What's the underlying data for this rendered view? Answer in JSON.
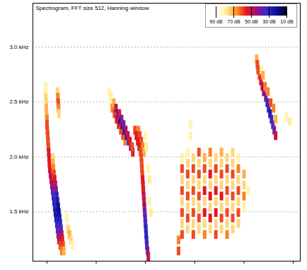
{
  "chart_data": {
    "type": "heatmap",
    "title": "Spectrogram, FFT size 512, Hanning window",
    "xlim": [
      0,
      38
    ],
    "xticks": [
      2,
      9,
      16,
      23,
      30,
      37
    ],
    "ylim": [
      1.05,
      3.4
    ],
    "yticks": [
      {
        "value": 1.5,
        "label": "1.5 kHz"
      },
      {
        "value": 2.0,
        "label": "2.0 kHz"
      },
      {
        "value": 2.5,
        "label": "2.5 kHz"
      },
      {
        "value": 3.0,
        "label": "3.0 kHz"
      }
    ],
    "grid": true,
    "tick_labels": "y",
    "legend": "top-right",
    "color_bar": {
      "range": [
        90,
        10
      ],
      "ticks": [
        {
          "value": 90,
          "label": "90 dB"
        },
        {
          "value": 70,
          "label": "70 dB"
        },
        {
          "value": 50,
          "label": "50 dB"
        },
        {
          "value": 30,
          "label": "30 dB"
        },
        {
          "value": 10,
          "label": "10 dB"
        }
      ]
    },
    "cell_width": 0.5,
    "cell_height": 0.08,
    "cells": [
      [
        1.6,
        2.6,
        80
      ],
      [
        1.6,
        2.55,
        80
      ],
      [
        1.65,
        2.5,
        75
      ],
      [
        1.7,
        2.45,
        75
      ],
      [
        1.7,
        2.4,
        70
      ],
      [
        1.75,
        2.35,
        70
      ],
      [
        1.8,
        2.3,
        65
      ],
      [
        1.8,
        2.25,
        60
      ],
      [
        1.85,
        2.2,
        60
      ],
      [
        1.9,
        2.15,
        60
      ],
      [
        1.95,
        2.1,
        60
      ],
      [
        2.0,
        2.05,
        60
      ],
      [
        2.05,
        2.0,
        55
      ],
      [
        2.1,
        1.95,
        55
      ],
      [
        2.15,
        1.9,
        55
      ],
      [
        2.2,
        1.85,
        55
      ],
      [
        2.3,
        1.8,
        50
      ],
      [
        2.4,
        1.75,
        50
      ],
      [
        2.5,
        1.7,
        45
      ],
      [
        2.6,
        1.65,
        40
      ],
      [
        2.7,
        1.6,
        35
      ],
      [
        2.8,
        1.55,
        30
      ],
      [
        2.9,
        1.5,
        30
      ],
      [
        3.0,
        1.45,
        25
      ],
      [
        3.1,
        1.4,
        25
      ],
      [
        3.2,
        1.35,
        30
      ],
      [
        3.3,
        1.3,
        35
      ],
      [
        3.4,
        1.25,
        40
      ],
      [
        3.5,
        1.2,
        50
      ],
      [
        3.7,
        1.15,
        60
      ],
      [
        3.9,
        1.1,
        65
      ],
      [
        2.6,
        1.95,
        75
      ],
      [
        2.65,
        1.9,
        70
      ],
      [
        2.7,
        1.85,
        65
      ],
      [
        2.8,
        1.8,
        60
      ],
      [
        2.9,
        1.75,
        55
      ],
      [
        3.0,
        1.7,
        50
      ],
      [
        3.1,
        1.65,
        40
      ],
      [
        3.2,
        1.6,
        30
      ],
      [
        3.3,
        1.55,
        25
      ],
      [
        3.4,
        1.5,
        20
      ],
      [
        3.5,
        1.45,
        20
      ],
      [
        3.6,
        1.4,
        25
      ],
      [
        3.7,
        1.35,
        30
      ],
      [
        3.8,
        1.3,
        35
      ],
      [
        3.9,
        1.25,
        45
      ],
      [
        4.0,
        1.2,
        55
      ],
      [
        4.1,
        1.15,
        60
      ],
      [
        4.2,
        1.1,
        70
      ],
      [
        3.3,
        2.55,
        75
      ],
      [
        3.35,
        2.5,
        65
      ],
      [
        3.4,
        2.45,
        60
      ],
      [
        3.45,
        2.4,
        65
      ],
      [
        3.5,
        2.35,
        75
      ],
      [
        4.6,
        1.4,
        80
      ],
      [
        4.8,
        1.3,
        75
      ],
      [
        5.0,
        1.25,
        70
      ],
      [
        5.2,
        1.2,
        75
      ],
      [
        5.4,
        1.15,
        80
      ],
      [
        10.7,
        2.55,
        80
      ],
      [
        10.9,
        2.5,
        78
      ],
      [
        10.8,
        2.45,
        80
      ],
      [
        11.1,
        2.4,
        65
      ],
      [
        11.4,
        2.35,
        60
      ],
      [
        11.7,
        2.3,
        55
      ],
      [
        12.0,
        2.25,
        55
      ],
      [
        12.3,
        2.2,
        60
      ],
      [
        12.6,
        2.15,
        60
      ],
      [
        12.9,
        2.1,
        65
      ],
      [
        11.3,
        2.45,
        70
      ],
      [
        11.6,
        2.4,
        50
      ],
      [
        11.9,
        2.35,
        30
      ],
      [
        12.2,
        2.3,
        20
      ],
      [
        12.5,
        2.25,
        20
      ],
      [
        12.8,
        2.2,
        20
      ],
      [
        13.1,
        2.15,
        25
      ],
      [
        13.4,
        2.1,
        30
      ],
      [
        13.7,
        2.05,
        40
      ],
      [
        14.0,
        2.0,
        55
      ],
      [
        12.1,
        2.35,
        55
      ],
      [
        12.4,
        2.3,
        40
      ],
      [
        12.7,
        2.25,
        40
      ],
      [
        13.0,
        2.2,
        45
      ],
      [
        13.3,
        2.15,
        50
      ],
      [
        13.6,
        2.1,
        55
      ],
      [
        13.9,
        2.05,
        60
      ],
      [
        14.3,
        2.2,
        60
      ],
      [
        14.8,
        2.2,
        65
      ],
      [
        14.5,
        2.15,
        55
      ],
      [
        15.0,
        2.15,
        60
      ],
      [
        14.7,
        2.1,
        55
      ],
      [
        15.2,
        2.1,
        60
      ],
      [
        14.9,
        2.05,
        55
      ],
      [
        15.4,
        2.05,
        65
      ],
      [
        15.1,
        2.0,
        60
      ],
      [
        15.6,
        2.0,
        70
      ],
      [
        15.8,
        2.15,
        80
      ],
      [
        15.9,
        2.05,
        78
      ],
      [
        15.2,
        1.95,
        60
      ],
      [
        15.25,
        1.9,
        60
      ],
      [
        15.3,
        1.85,
        60
      ],
      [
        15.35,
        1.8,
        60
      ],
      [
        15.4,
        1.75,
        55
      ],
      [
        15.45,
        1.7,
        55
      ],
      [
        15.5,
        1.65,
        55
      ],
      [
        15.55,
        1.6,
        50
      ],
      [
        15.6,
        1.55,
        50
      ],
      [
        15.65,
        1.5,
        45
      ],
      [
        15.7,
        1.45,
        40
      ],
      [
        15.75,
        1.4,
        35
      ],
      [
        15.8,
        1.35,
        35
      ],
      [
        15.85,
        1.3,
        30
      ],
      [
        15.9,
        1.25,
        30
      ],
      [
        15.95,
        1.2,
        30
      ],
      [
        16.0,
        1.15,
        35
      ],
      [
        16.1,
        1.1,
        40
      ],
      [
        16.2,
        1.05,
        50
      ],
      [
        16.2,
        1.85,
        80
      ],
      [
        16.4,
        1.75,
        78
      ],
      [
        16.3,
        1.55,
        80
      ],
      [
        16.6,
        1.45,
        78
      ],
      [
        20.5,
        1.1,
        60
      ],
      [
        20.5,
        1.2,
        65
      ],
      [
        22.2,
        2.15,
        80
      ],
      [
        22.2,
        2.25,
        80
      ],
      [
        21.0,
        1.25,
        60
      ],
      [
        21.0,
        1.35,
        75
      ],
      [
        21.0,
        1.45,
        60
      ],
      [
        21.0,
        1.55,
        75
      ],
      [
        21.0,
        1.65,
        60
      ],
      [
        21.0,
        1.75,
        75
      ],
      [
        21.0,
        1.85,
        60
      ],
      [
        21.0,
        1.95,
        80
      ],
      [
        21.8,
        1.3,
        75
      ],
      [
        21.8,
        1.4,
        60
      ],
      [
        21.8,
        1.5,
        75
      ],
      [
        21.8,
        1.6,
        60
      ],
      [
        21.8,
        1.7,
        75
      ],
      [
        21.8,
        1.8,
        60
      ],
      [
        21.8,
        1.9,
        75
      ],
      [
        21.8,
        2.0,
        80
      ],
      [
        22.6,
        1.25,
        60
      ],
      [
        22.6,
        1.35,
        75
      ],
      [
        22.6,
        1.45,
        60
      ],
      [
        22.6,
        1.55,
        75
      ],
      [
        22.6,
        1.65,
        60
      ],
      [
        22.6,
        1.75,
        75
      ],
      [
        22.6,
        1.85,
        60
      ],
      [
        22.6,
        1.95,
        75
      ],
      [
        23.4,
        1.3,
        75
      ],
      [
        23.4,
        1.4,
        60
      ],
      [
        23.4,
        1.5,
        75
      ],
      [
        23.4,
        1.6,
        60
      ],
      [
        23.4,
        1.7,
        75
      ],
      [
        23.4,
        1.8,
        60
      ],
      [
        23.4,
        1.9,
        75
      ],
      [
        23.4,
        2.0,
        60
      ],
      [
        24.2,
        1.25,
        65
      ],
      [
        24.2,
        1.35,
        75
      ],
      [
        24.2,
        1.45,
        55
      ],
      [
        24.2,
        1.55,
        75
      ],
      [
        24.2,
        1.65,
        55
      ],
      [
        24.2,
        1.75,
        75
      ],
      [
        24.2,
        1.85,
        60
      ],
      [
        24.2,
        1.95,
        70
      ],
      [
        25.0,
        1.3,
        75
      ],
      [
        25.0,
        1.4,
        55
      ],
      [
        25.0,
        1.5,
        75
      ],
      [
        25.0,
        1.6,
        55
      ],
      [
        25.0,
        1.7,
        75
      ],
      [
        25.0,
        1.8,
        55
      ],
      [
        25.0,
        1.9,
        75
      ],
      [
        25.0,
        2.0,
        65
      ],
      [
        25.8,
        1.25,
        60
      ],
      [
        25.8,
        1.35,
        75
      ],
      [
        25.8,
        1.45,
        55
      ],
      [
        25.8,
        1.55,
        75
      ],
      [
        25.8,
        1.65,
        55
      ],
      [
        25.8,
        1.75,
        75
      ],
      [
        25.8,
        1.85,
        60
      ],
      [
        25.8,
        1.95,
        75
      ],
      [
        26.6,
        1.3,
        75
      ],
      [
        26.6,
        1.4,
        60
      ],
      [
        26.6,
        1.5,
        75
      ],
      [
        26.6,
        1.6,
        55
      ],
      [
        26.6,
        1.7,
        75
      ],
      [
        26.6,
        1.8,
        60
      ],
      [
        26.6,
        1.9,
        75
      ],
      [
        26.6,
        2.0,
        70
      ],
      [
        27.4,
        1.25,
        65
      ],
      [
        27.4,
        1.35,
        75
      ],
      [
        27.4,
        1.45,
        60
      ],
      [
        27.4,
        1.55,
        75
      ],
      [
        27.4,
        1.65,
        60
      ],
      [
        27.4,
        1.75,
        75
      ],
      [
        27.4,
        1.85,
        60
      ],
      [
        27.4,
        1.95,
        75
      ],
      [
        28.2,
        1.3,
        75
      ],
      [
        28.2,
        1.4,
        60
      ],
      [
        28.2,
        1.5,
        75
      ],
      [
        28.2,
        1.6,
        60
      ],
      [
        28.2,
        1.7,
        75
      ],
      [
        28.2,
        1.8,
        60
      ],
      [
        28.2,
        1.9,
        75
      ],
      [
        28.2,
        2.0,
        75
      ],
      [
        29.0,
        1.35,
        75
      ],
      [
        29.0,
        1.45,
        60
      ],
      [
        29.0,
        1.55,
        75
      ],
      [
        29.0,
        1.65,
        60
      ],
      [
        29.0,
        1.75,
        75
      ],
      [
        29.0,
        1.85,
        65
      ],
      [
        29.0,
        1.95,
        80
      ],
      [
        29.8,
        1.5,
        80
      ],
      [
        29.8,
        1.6,
        65
      ],
      [
        29.8,
        1.7,
        75
      ],
      [
        29.8,
        1.8,
        70
      ],
      [
        30.4,
        1.65,
        80
      ],
      [
        31.6,
        2.85,
        70
      ],
      [
        31.7,
        2.8,
        60
      ],
      [
        31.8,
        2.75,
        60
      ],
      [
        32.0,
        2.7,
        60
      ],
      [
        32.2,
        2.65,
        55
      ],
      [
        32.4,
        2.6,
        50
      ],
      [
        32.6,
        2.55,
        45
      ],
      [
        32.9,
        2.5,
        40
      ],
      [
        33.1,
        2.45,
        35
      ],
      [
        33.3,
        2.4,
        30
      ],
      [
        33.5,
        2.35,
        25
      ],
      [
        33.7,
        2.3,
        30
      ],
      [
        33.9,
        2.25,
        35
      ],
      [
        34.1,
        2.2,
        40
      ],
      [
        34.3,
        2.15,
        50
      ],
      [
        32.3,
        2.75,
        80
      ],
      [
        32.5,
        2.7,
        70
      ],
      [
        32.8,
        2.6,
        65
      ],
      [
        33.2,
        2.55,
        65
      ],
      [
        33.6,
        2.45,
        60
      ],
      [
        34.0,
        2.4,
        65
      ],
      [
        34.3,
        2.3,
        70
      ],
      [
        35.8,
        2.32,
        80
      ],
      [
        36.3,
        2.28,
        78
      ]
    ]
  }
}
